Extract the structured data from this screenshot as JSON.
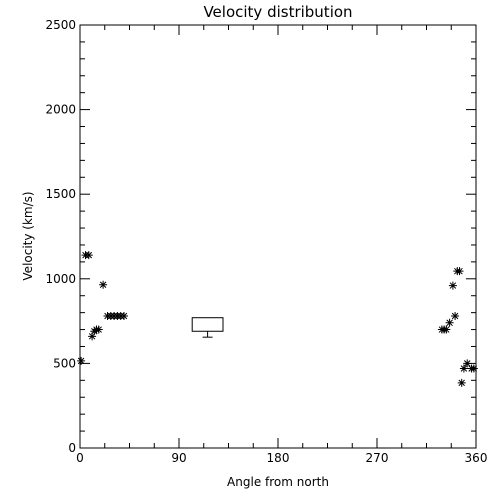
{
  "chart_data": {
    "type": "scatter",
    "title": "Velocity distribution",
    "xlabel": "Angle from north",
    "ylabel": "Velocity (km/s)",
    "xlim": [
      0,
      360
    ],
    "ylim": [
      0,
      2500
    ],
    "xticks": [
      0,
      90,
      180,
      270,
      360
    ],
    "yticks": [
      0,
      500,
      1000,
      1500,
      2000,
      2500
    ],
    "grid": false,
    "marker": "asterisk",
    "series": [
      {
        "points": [
          [
            1,
            515
          ],
          [
            5,
            1140
          ],
          [
            8,
            1140
          ],
          [
            11,
            660
          ],
          [
            13,
            690
          ],
          [
            15,
            700
          ],
          [
            17,
            700
          ],
          [
            21,
            965
          ],
          [
            25,
            780
          ],
          [
            28,
            780
          ],
          [
            31,
            780
          ],
          [
            34,
            780
          ],
          [
            37,
            780
          ],
          [
            40,
            780
          ],
          [
            329,
            700
          ],
          [
            331,
            700
          ],
          [
            333,
            700
          ],
          [
            336,
            740
          ],
          [
            339,
            960
          ],
          [
            341,
            780
          ],
          [
            343,
            1045
          ],
          [
            345,
            1045
          ],
          [
            347,
            385
          ],
          [
            349,
            470
          ],
          [
            352,
            500
          ],
          [
            356,
            470
          ],
          [
            358,
            470
          ]
        ]
      }
    ],
    "box_annotation": {
      "x_range": [
        102,
        130
      ],
      "y_range": [
        690,
        770
      ],
      "whisker_low": 655
    }
  }
}
